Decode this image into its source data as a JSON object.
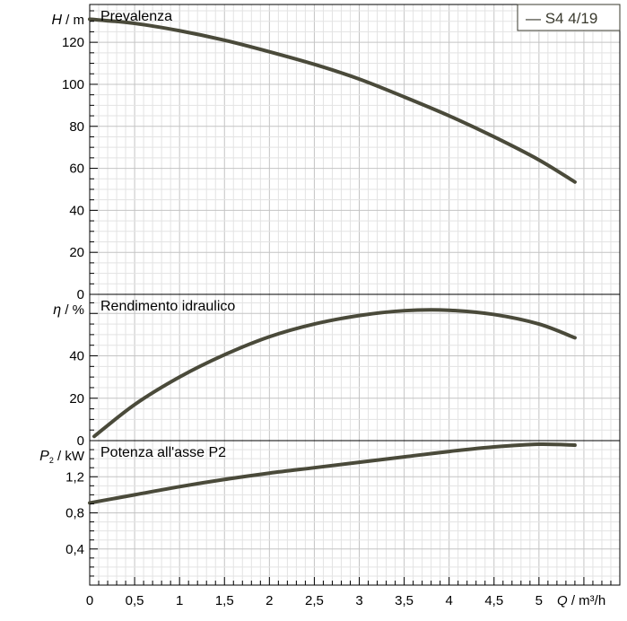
{
  "chart_data": {
    "type": "line",
    "legend": {
      "label": "— S4 4/19",
      "placement": "top-right"
    },
    "series_color": "#4a4a3a",
    "grid": true,
    "x": {
      "label_var": "Q",
      "label_unit": "/ m³/h",
      "range": [
        0,
        5.9
      ],
      "ticks": [
        {
          "v": 0,
          "t": "0"
        },
        {
          "v": 0.5,
          "t": "0,5"
        },
        {
          "v": 1,
          "t": "1"
        },
        {
          "v": 1.5,
          "t": "1,5"
        },
        {
          "v": 2,
          "t": "2"
        },
        {
          "v": 2.5,
          "t": "2,5"
        },
        {
          "v": 3,
          "t": "3"
        },
        {
          "v": 3.5,
          "t": "3,5"
        },
        {
          "v": 4,
          "t": "4"
        },
        {
          "v": 4.5,
          "t": "4,5"
        },
        {
          "v": 5,
          "t": "5"
        }
      ]
    },
    "panels": [
      {
        "id": "head",
        "title": "Prevalenza",
        "ylabel_var": "H",
        "ylabel_unit": "/ m",
        "ylim": [
          0,
          138
        ],
        "ticks": [
          {
            "v": 0,
            "t": "0"
          },
          {
            "v": 20,
            "t": "20"
          },
          {
            "v": 40,
            "t": "40"
          },
          {
            "v": 60,
            "t": "60"
          },
          {
            "v": 80,
            "t": "80"
          },
          {
            "v": 100,
            "t": "100"
          },
          {
            "v": 120,
            "t": "120"
          }
        ],
        "series": [
          {
            "x": [
              0,
              0.5,
              1,
              1.5,
              2,
              2.5,
              3,
              3.5,
              4,
              4.5,
              5,
              5.4
            ],
            "y": [
              131,
              129,
              125.5,
              121,
              115.5,
              109.5,
              102.5,
              94,
              85,
              75,
              64,
              53.5
            ]
          }
        ]
      },
      {
        "id": "efficiency",
        "title": "Rendimento idraulico",
        "ylabel_var": "η",
        "ylabel_unit": "/ %",
        "ylim": [
          0,
          69
        ],
        "ticks": [
          {
            "v": 0,
            "t": "0"
          },
          {
            "v": 20,
            "t": "20"
          },
          {
            "v": 40,
            "t": "40"
          }
        ],
        "series": [
          {
            "x": [
              0.05,
              0.5,
              1,
              1.5,
              2,
              2.5,
              3,
              3.5,
              4,
              4.5,
              5,
              5.4
            ],
            "y": [
              2,
              17,
              30,
              40.5,
              49,
              55,
              59,
              61.3,
              61.5,
              59.5,
              55,
              48.5
            ]
          }
        ]
      },
      {
        "id": "power",
        "title": "Potenza all'asse P2",
        "ylabel_var": "P",
        "ylabel_sub": "2",
        "ylabel_unit": "/ kW",
        "ylim": [
          0,
          1.6
        ],
        "ticks": [
          {
            "v": 0.4,
            "t": "0,4"
          },
          {
            "v": 0.8,
            "t": "0,8"
          },
          {
            "v": 1.2,
            "t": "1,2"
          }
        ],
        "series": [
          {
            "x": [
              0,
              0.5,
              1,
              1.5,
              2,
              2.5,
              3,
              3.5,
              4,
              4.5,
              5,
              5.4
            ],
            "y": [
              0.91,
              1.0,
              1.09,
              1.17,
              1.24,
              1.3,
              1.36,
              1.42,
              1.48,
              1.53,
              1.56,
              1.55
            ]
          }
        ]
      }
    ]
  }
}
